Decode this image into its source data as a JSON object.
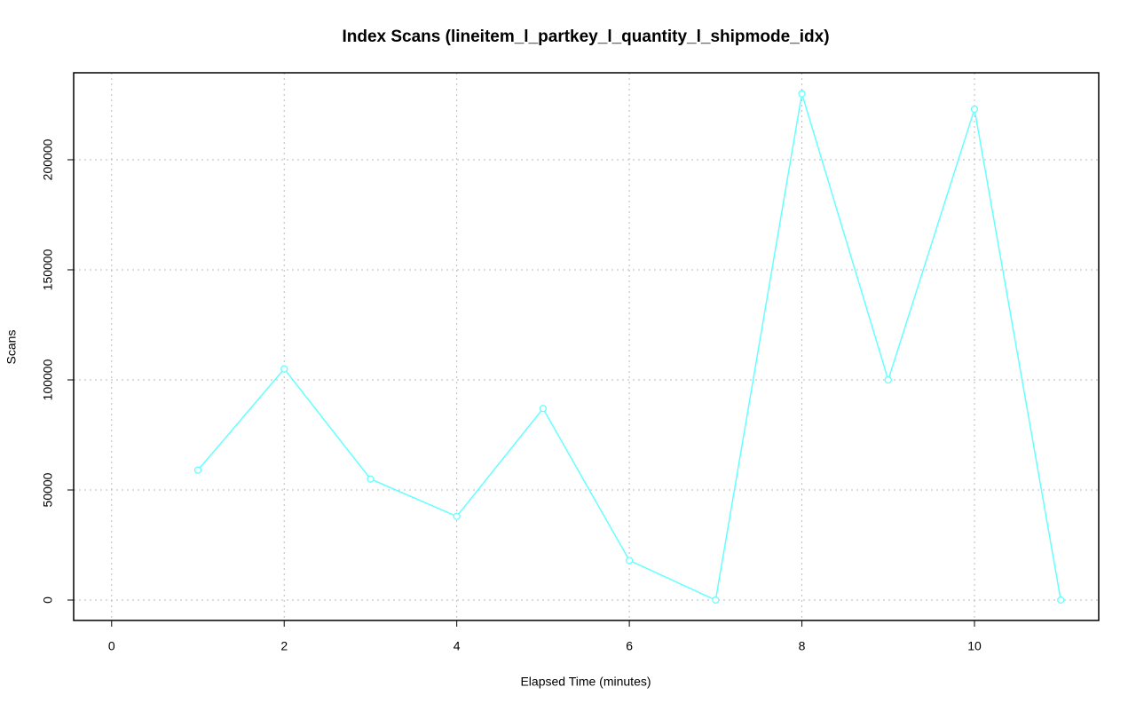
{
  "chart_data": {
    "type": "line",
    "title": "Index Scans (lineitem_l_partkey_l_quantity_l_shipmode_idx)",
    "x_label": "Elapsed Time (minutes)",
    "y_label": "Scans",
    "x": [
      1,
      2,
      3,
      4,
      5,
      6,
      7,
      8,
      9,
      10,
      11
    ],
    "values": [
      59000,
      105000,
      55000,
      38000,
      87000,
      18000,
      0,
      230000,
      100000,
      223000,
      0
    ],
    "color": "#66ffff",
    "xlim": [
      -0.44,
      11.44
    ],
    "xticks": [
      0,
      2,
      4,
      6,
      8,
      10
    ],
    "ylim": [
      -9274,
      239500
    ],
    "yticks": [
      0,
      50000,
      100000,
      150000,
      200000
    ],
    "grid": true
  }
}
